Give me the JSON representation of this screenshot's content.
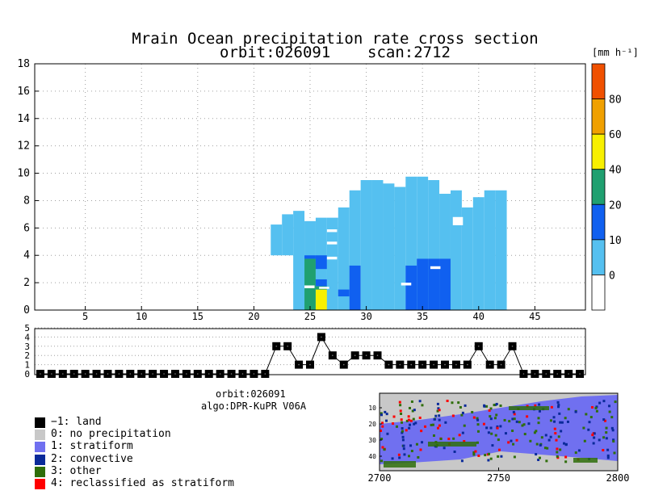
{
  "title_line1": "Mrain Ocean precipitation rate cross section",
  "title_line2": "orbit:026091    scan:2712",
  "colorbar": {
    "unit_label": "[mm h⁻¹]",
    "ticks": [
      "0",
      "10",
      "20",
      "40",
      "60",
      "80"
    ],
    "colors": [
      "#ffffff",
      "#55c0f0",
      "#1060f0",
      "#20a070",
      "#f8f000",
      "#f0a000",
      "#f05000"
    ]
  },
  "info": {
    "orbit": "orbit:026091",
    "algo": "algo:DPR-KuPR V06A"
  },
  "legend": [
    {
      "label": "−1: land",
      "color": "#000000"
    },
    {
      "label": "0: no precipitation",
      "color": "#c8c8c8"
    },
    {
      "label": "1: stratiform",
      "color": "#7070f0"
    },
    {
      "label": "2: convective",
      "color": "#0a2a9a"
    },
    {
      "label": "3: other",
      "color": "#2f6e0a"
    },
    {
      "label": "4: reclassified as stratiform",
      "color": "#ff0000"
    }
  ],
  "chart_data": [
    {
      "type": "heatmap",
      "name": "precipitation cross section",
      "xlabel": "",
      "ylabel": "",
      "xlim": [
        1,
        49
      ],
      "ylim": [
        0,
        18
      ],
      "x_ticks": [
        5,
        10,
        15,
        20,
        25,
        30,
        35,
        40,
        45
      ],
      "y_ticks": [
        0,
        2,
        4,
        6,
        8,
        10,
        12,
        14,
        16,
        18
      ],
      "grid": true,
      "columns": [
        {
          "x": 22,
          "top": 6.25,
          "bands": []
        },
        {
          "x": 23,
          "top": 7.0,
          "bands": []
        },
        {
          "x": 24,
          "top": 7.25,
          "bands": []
        },
        {
          "x": 25,
          "top": 6.5,
          "bands": [
            [
              0,
              3.75,
              "#20a070"
            ],
            [
              3.75,
              4.0,
              "#1060f0"
            ]
          ]
        },
        {
          "x": 26,
          "top": 6.75,
          "bands": [
            [
              0,
              1.5,
              "#f8f000"
            ],
            [
              1.5,
              1.75,
              "#20a070"
            ],
            [
              1.75,
              2.25,
              "#1060f0"
            ],
            [
              2.25,
              3.0,
              "#55c0f0"
            ],
            [
              3.0,
              4.0,
              "#1060f0"
            ]
          ]
        },
        {
          "x": 27,
          "top": 6.75,
          "bands": []
        },
        {
          "x": 28,
          "top": 7.5,
          "bands": [
            [
              1.0,
              1.5,
              "#1060f0"
            ]
          ]
        },
        {
          "x": 29,
          "top": 8.75,
          "bands": [
            [
              0,
              3.25,
              "#1060f0"
            ]
          ]
        },
        {
          "x": 30,
          "top": 9.5,
          "bands": []
        },
        {
          "x": 31,
          "top": 9.5,
          "bands": []
        },
        {
          "x": 32,
          "top": 9.25,
          "bands": []
        },
        {
          "x": 33,
          "top": 9.0,
          "bands": []
        },
        {
          "x": 34,
          "top": 9.75,
          "bands": [
            [
              0,
              3.25,
              "#1060f0"
            ]
          ]
        },
        {
          "x": 35,
          "top": 9.75,
          "bands": [
            [
              0,
              3.75,
              "#1060f0"
            ]
          ]
        },
        {
          "x": 36,
          "top": 9.5,
          "bands": [
            [
              0,
              3.75,
              "#1060f0"
            ]
          ]
        },
        {
          "x": 37,
          "top": 8.5,
          "bands": [
            [
              0,
              3.75,
              "#1060f0"
            ]
          ]
        },
        {
          "x": 38,
          "top": 8.75,
          "bands": []
        },
        {
          "x": 39,
          "top": 7.5,
          "bands": []
        },
        {
          "x": 40,
          "top": 8.25,
          "bands": []
        },
        {
          "x": 41,
          "top": 8.75,
          "bands": []
        },
        {
          "x": 42,
          "top": 8.75,
          "bands": []
        }
      ],
      "background_value": 0
    },
    {
      "type": "line",
      "name": "precipitation type per bin",
      "x": [
        1,
        2,
        3,
        4,
        5,
        6,
        7,
        8,
        9,
        10,
        11,
        12,
        13,
        14,
        15,
        16,
        17,
        18,
        19,
        20,
        21,
        22,
        23,
        24,
        25,
        26,
        27,
        28,
        29,
        30,
        31,
        32,
        33,
        34,
        35,
        36,
        37,
        38,
        39,
        40,
        41,
        42,
        43,
        44,
        45,
        46,
        47,
        48,
        49
      ],
      "values": [
        0,
        0,
        0,
        0,
        0,
        0,
        0,
        0,
        0,
        0,
        0,
        0,
        0,
        0,
        0,
        0,
        0,
        0,
        0,
        0,
        0,
        3,
        3,
        1,
        1,
        4,
        2,
        1,
        2,
        2,
        2,
        1,
        1,
        1,
        1,
        1,
        1,
        1,
        1,
        3,
        1,
        1,
        3,
        0,
        0,
        0,
        0,
        0,
        0
      ],
      "ylim": [
        0,
        5
      ],
      "y_ticks": [
        0,
        1,
        2,
        3,
        4,
        5
      ],
      "grid": true
    },
    {
      "type": "heatmap",
      "name": "surface precipitation type swath",
      "x_ticks": [
        2700,
        2750,
        2800
      ],
      "y_ticks": [
        10,
        20,
        30,
        40
      ],
      "xlim": [
        2700,
        2800
      ],
      "ylim": [
        1,
        49
      ]
    }
  ]
}
